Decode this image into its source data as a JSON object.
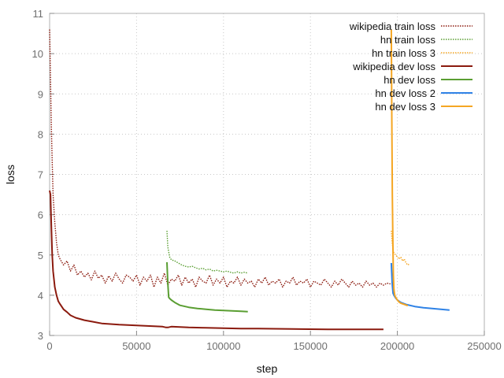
{
  "chart_data": {
    "type": "line",
    "xlabel": "step",
    "ylabel": "loss",
    "xlim": [
      0,
      250000
    ],
    "ylim": [
      3,
      11
    ],
    "x_ticks": [
      0,
      50000,
      100000,
      150000,
      200000,
      250000
    ],
    "x_tick_labels": [
      "0",
      "50000",
      "100000",
      "150000",
      "200000",
      "250000"
    ],
    "y_ticks": [
      3,
      4,
      5,
      6,
      7,
      8,
      9,
      10,
      11
    ],
    "y_tick_labels": [
      "3",
      "4",
      "5",
      "6",
      "7",
      "8",
      "9",
      "10",
      "11"
    ],
    "grid": true,
    "legend_position": "top-right",
    "series": [
      {
        "name": "wikipedia train loss",
        "color": "#8b1a0e",
        "style": "dotted",
        "x": [
          0,
          500,
          1000,
          1500,
          2000,
          3000,
          4000,
          5000,
          6000,
          8000,
          10000,
          12000,
          14000,
          16000,
          18000,
          20000,
          22000,
          24000,
          26000,
          28000,
          30000,
          32000,
          34000,
          36000,
          38000,
          40000,
          42000,
          44000,
          46000,
          48000,
          50000,
          52000,
          54000,
          56000,
          58000,
          60000,
          62000,
          64000,
          66000,
          68000,
          70000,
          72000,
          74000,
          76000,
          78000,
          80000,
          82000,
          84000,
          86000,
          88000,
          90000,
          92000,
          94000,
          96000,
          98000,
          100000,
          102000,
          104000,
          106000,
          108000,
          110000,
          112000,
          114000,
          116000,
          118000,
          120000,
          122000,
          124000,
          126000,
          128000,
          130000,
          132000,
          134000,
          136000,
          138000,
          140000,
          142000,
          144000,
          146000,
          148000,
          150000,
          152000,
          154000,
          156000,
          158000,
          160000,
          162000,
          164000,
          166000,
          168000,
          170000,
          172000,
          174000,
          176000,
          178000,
          180000,
          182000,
          184000,
          186000,
          188000,
          190000,
          192000,
          194000,
          196000
        ],
        "y": [
          10.6,
          9.4,
          8.2,
          7.3,
          6.5,
          5.8,
          5.3,
          5.0,
          4.9,
          4.75,
          4.85,
          4.6,
          4.75,
          4.5,
          4.6,
          4.45,
          4.55,
          4.38,
          4.6,
          4.42,
          4.5,
          4.3,
          4.48,
          4.35,
          4.55,
          4.4,
          4.3,
          4.5,
          4.45,
          4.35,
          4.5,
          4.25,
          4.45,
          4.35,
          4.5,
          4.2,
          4.45,
          4.3,
          4.55,
          4.25,
          4.4,
          4.35,
          4.5,
          4.25,
          4.45,
          4.3,
          4.4,
          4.2,
          4.45,
          4.35,
          4.3,
          4.5,
          4.25,
          4.4,
          4.3,
          4.45,
          4.2,
          4.35,
          4.3,
          4.45,
          4.25,
          4.4,
          4.3,
          4.35,
          4.2,
          4.4,
          4.3,
          4.45,
          4.25,
          4.35,
          4.3,
          4.4,
          4.2,
          4.35,
          4.3,
          4.45,
          4.25,
          4.35,
          4.3,
          4.4,
          4.2,
          4.35,
          4.3,
          4.25,
          4.4,
          4.3,
          4.2,
          4.35,
          4.25,
          4.4,
          4.3,
          4.2,
          4.35,
          4.25,
          4.3,
          4.2,
          4.35,
          4.25,
          4.3,
          4.2,
          4.3,
          4.25,
          4.3,
          4.28
        ]
      },
      {
        "name": "hn train loss",
        "color": "#5a9e32",
        "style": "dotted",
        "x": [
          67500,
          68000,
          69000,
          70000,
          72000,
          74000,
          76000,
          78000,
          80000,
          82000,
          84000,
          86000,
          88000,
          90000,
          92000,
          94000,
          96000,
          98000,
          100000,
          102000,
          104000,
          106000,
          108000,
          110000,
          112000,
          114000
        ],
        "y": [
          5.6,
          5.2,
          4.95,
          4.88,
          4.85,
          4.8,
          4.75,
          4.72,
          4.7,
          4.72,
          4.68,
          4.65,
          4.67,
          4.63,
          4.65,
          4.6,
          4.62,
          4.6,
          4.58,
          4.6,
          4.57,
          4.55,
          4.58,
          4.55,
          4.57,
          4.55
        ]
      },
      {
        "name": "hn train loss 3",
        "color": "#f5a623",
        "style": "dotted",
        "x": [
          196500,
          197000,
          197500,
          198000,
          199000,
          200000,
          201000,
          202000,
          203000,
          204000,
          205000,
          206000,
          207000
        ],
        "y": [
          5.6,
          5.3,
          5.15,
          5.05,
          5.0,
          4.95,
          4.9,
          4.95,
          4.85,
          4.9,
          4.8,
          4.75,
          4.78
        ]
      },
      {
        "name": "wikipedia dev loss",
        "color": "#8b1a0e",
        "style": "solid",
        "x": [
          0,
          500,
          1000,
          1500,
          2000,
          3000,
          4000,
          5000,
          6000,
          8000,
          10000,
          12000,
          15000,
          20000,
          25000,
          30000,
          40000,
          50000,
          60000,
          65000,
          67000,
          68000,
          70000,
          80000,
          90000,
          100000,
          110000,
          120000,
          140000,
          160000,
          180000,
          192000
        ],
        "y": [
          6.6,
          6.5,
          5.7,
          5.0,
          4.6,
          4.2,
          4.0,
          3.85,
          3.78,
          3.65,
          3.58,
          3.5,
          3.44,
          3.38,
          3.34,
          3.3,
          3.27,
          3.25,
          3.23,
          3.22,
          3.2,
          3.2,
          3.22,
          3.2,
          3.19,
          3.18,
          3.17,
          3.17,
          3.16,
          3.15,
          3.15,
          3.15
        ]
      },
      {
        "name": "hn dev loss",
        "color": "#5a9e32",
        "style": "solid",
        "x": [
          67500,
          68000,
          68500,
          69000,
          70000,
          72000,
          75000,
          80000,
          85000,
          90000,
          95000,
          100000,
          105000,
          110000,
          114000
        ],
        "y": [
          4.82,
          4.3,
          3.95,
          3.92,
          3.88,
          3.82,
          3.75,
          3.7,
          3.67,
          3.65,
          3.63,
          3.62,
          3.61,
          3.6,
          3.59
        ]
      },
      {
        "name": "hn dev loss 2",
        "color": "#2f82e6",
        "style": "solid",
        "x": [
          196500,
          197000,
          197500,
          198000,
          199000,
          200000,
          202000,
          205000,
          210000,
          215000,
          220000,
          225000,
          230000
        ],
        "y": [
          4.8,
          4.3,
          4.05,
          4.0,
          3.93,
          3.88,
          3.82,
          3.77,
          3.72,
          3.69,
          3.67,
          3.65,
          3.63
        ]
      },
      {
        "name": "hn dev loss 3",
        "color": "#f5a623",
        "style": "solid",
        "x": [
          196500,
          196800,
          197100,
          197400,
          197700,
          198000,
          198500,
          199000,
          200000,
          201000,
          202000,
          204000,
          206000
        ],
        "y": [
          10.6,
          8.5,
          6.5,
          5.3,
          4.5,
          4.15,
          4.0,
          3.95,
          3.88,
          3.83,
          3.8,
          3.77,
          3.74
        ]
      }
    ]
  }
}
